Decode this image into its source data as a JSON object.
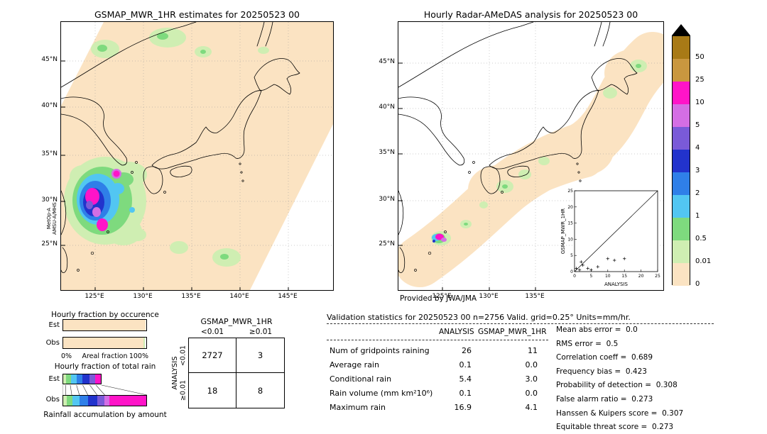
{
  "colors": {
    "brown": "#a87a16",
    "tan": "#c9973f",
    "magenta": "#ff14c8",
    "orchid": "#d46ee4",
    "purple": "#7a5ad8",
    "blue": "#2233cc",
    "light_blue": "#2f7fe8",
    "cyan": "#52c6f2",
    "green": "#7eda7e",
    "pale_green": "#cfeeb2",
    "peach": "#fbe3c2",
    "white": "#ffffff"
  },
  "chart_data": [
    {
      "type": "heatmap",
      "name": "gsmap-precip-map",
      "title": "GSMAP_MWR_1HR estimates for 20250523 00",
      "sensor_lines": [
        "MetOp-A",
        "AMSU-A/MHS"
      ],
      "x_ticks": [
        "125°E",
        "130°E",
        "135°E",
        "140°E",
        "145°E"
      ],
      "y_ticks": [
        "45°N",
        "40°N",
        "35°N",
        "30°N",
        "25°N"
      ]
    },
    {
      "type": "heatmap",
      "name": "radar-amedas-map",
      "title": "Hourly Radar-AMeDAS analysis for 20250523 00",
      "credit": "Provided by JWA/JMA",
      "x_ticks": [
        "125°E",
        "130°E",
        "135°E"
      ],
      "y_ticks": [
        "45°N",
        "40°N",
        "35°N",
        "30°N",
        "25°N"
      ]
    },
    {
      "type": "scatter",
      "name": "gsmap-vs-analysis-scatter",
      "xlabel": "ANALYSIS",
      "ylabel": "GSMAP_MWR_1HR",
      "xlim": [
        0,
        25
      ],
      "ylim": [
        0,
        25
      ],
      "x_ticks": [
        0,
        5,
        10,
        15,
        20,
        25
      ],
      "y_ticks": [
        0,
        5,
        10,
        15,
        20,
        25
      ],
      "diagonal_line": true,
      "marker": "+",
      "points": [
        [
          0.5,
          1
        ],
        [
          1.5,
          0.5
        ],
        [
          2,
          3
        ],
        [
          2.5,
          2
        ],
        [
          4,
          1
        ],
        [
          5,
          0.5
        ],
        [
          7,
          1.5
        ],
        [
          10,
          4
        ],
        [
          12,
          3.5
        ],
        [
          15,
          4
        ]
      ]
    },
    {
      "type": "bar",
      "name": "hourly-fraction-by-occurrence",
      "title": "Hourly fraction by occurence",
      "categories": [
        "Est",
        "Obs"
      ],
      "axis_labels": {
        "left": "0%",
        "center": "Areal fraction",
        "right": "100%"
      },
      "series": [
        {
          "name": "Est",
          "segments": [
            {
              "color": "peach",
              "pct": 99.2
            },
            {
              "color": "white",
              "pct": 0.8
            }
          ]
        },
        {
          "name": "Obs",
          "segments": [
            {
              "color": "peach",
              "pct": 96.5
            },
            {
              "color": "pale_green",
              "pct": 2.2
            },
            {
              "color": "white",
              "pct": 1.3
            }
          ]
        }
      ]
    },
    {
      "type": "bar",
      "name": "hourly-fraction-of-total-rain",
      "title": "Hourly fraction of total rain",
      "footer": "Rainfall accumulation by amount",
      "categories": [
        "Est",
        "Obs"
      ],
      "series": [
        {
          "name": "Est",
          "width_pct": 46,
          "segments": [
            {
              "color": "pale_green",
              "pct": 8
            },
            {
              "color": "green",
              "pct": 12
            },
            {
              "color": "cyan",
              "pct": 16
            },
            {
              "color": "light_blue",
              "pct": 16
            },
            {
              "color": "blue",
              "pct": 18
            },
            {
              "color": "purple",
              "pct": 16
            },
            {
              "color": "magenta",
              "pct": 14
            }
          ]
        },
        {
          "name": "Obs",
          "width_pct": 100,
          "segments": [
            {
              "color": "pale_green",
              "pct": 4
            },
            {
              "color": "green",
              "pct": 7
            },
            {
              "color": "cyan",
              "pct": 9
            },
            {
              "color": "light_blue",
              "pct": 10
            },
            {
              "color": "blue",
              "pct": 11
            },
            {
              "color": "purple",
              "pct": 9
            },
            {
              "color": "orchid",
              "pct": 6
            },
            {
              "color": "magenta",
              "pct": 44
            }
          ]
        }
      ]
    },
    {
      "type": "table",
      "name": "contingency-table",
      "title": "GSMAP_MWR_1HR",
      "row_axis": "ANALYSIS",
      "col_headers": [
        "<0.01",
        "≥0.01"
      ],
      "row_headers": [
        "<0.01",
        "≥0.01"
      ],
      "values": [
        [
          2727,
          3
        ],
        [
          18,
          8
        ]
      ]
    },
    {
      "type": "table",
      "name": "validation-statistics",
      "title": "Validation statistics for 20250523 00  n=2756 Valid. grid=0.25° Units=mm/hr.",
      "col_headers": [
        "ANALYSIS",
        "GSMAP_MWR_1HR"
      ],
      "rows": [
        {
          "label": "Num of gridpoints raining",
          "values": [
            "26",
            "11"
          ]
        },
        {
          "label": "Average rain",
          "values": [
            "0.1",
            "0.0"
          ]
        },
        {
          "label": "Conditional rain",
          "values": [
            "5.4",
            "3.0"
          ]
        },
        {
          "label": "Rain volume (mm km²10⁶)",
          "values": [
            "0.1",
            "0.0"
          ]
        },
        {
          "label": "Maximum rain",
          "values": [
            "16.9",
            "4.1"
          ]
        }
      ],
      "scores": [
        {
          "label": "Mean abs error",
          "value": "0.0"
        },
        {
          "label": "RMS error",
          "value": "0.5"
        },
        {
          "label": "Correlation coeff",
          "value": "0.689"
        },
        {
          "label": "Frequency bias",
          "value": "0.423"
        },
        {
          "label": "Probability of detection",
          "value": "0.308"
        },
        {
          "label": "False alarm ratio",
          "value": "0.273"
        },
        {
          "label": "Hanssen & Kuipers score",
          "value": "0.307"
        },
        {
          "label": "Equitable threat score",
          "value": "0.273"
        }
      ]
    },
    {
      "type": "heatmap",
      "name": "rain-rate-colorbar",
      "stops": [
        {
          "label": "50",
          "color": "brown"
        },
        {
          "label": "25",
          "color": "tan"
        },
        {
          "label": "10",
          "color": "magenta"
        },
        {
          "label": "5",
          "color": "orchid"
        },
        {
          "label": "4",
          "color": "purple"
        },
        {
          "label": "3",
          "color": "blue"
        },
        {
          "label": "2",
          "color": "light_blue"
        },
        {
          "label": "1",
          "color": "cyan"
        },
        {
          "label": "0.5",
          "color": "green"
        },
        {
          "label": "0.01",
          "color": "pale_green"
        },
        {
          "label": "0",
          "color": "peach"
        }
      ]
    }
  ]
}
